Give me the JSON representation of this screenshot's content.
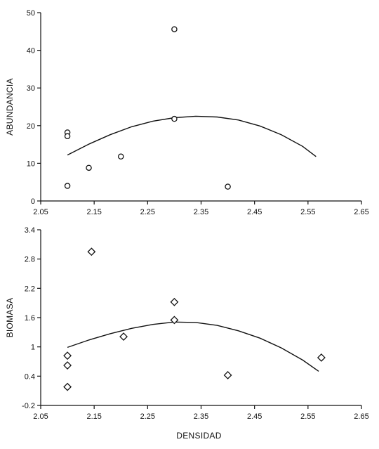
{
  "chart_data": [
    {
      "type": "scatter",
      "title": "",
      "xlabel": "",
      "ylabel": "ABUNDANCIA",
      "xlim": [
        2.05,
        2.65
      ],
      "ylim": [
        0,
        50
      ],
      "xticks": [
        2.05,
        2.15,
        2.25,
        2.35,
        2.45,
        2.55,
        2.65
      ],
      "xtick_labels": [
        "2.05",
        "2.15",
        "2.25",
        "2.35",
        "2.45",
        "2.55",
        "2.65"
      ],
      "yticks": [
        0,
        10,
        20,
        30,
        40,
        50
      ],
      "ytick_labels": [
        "0",
        "10",
        "20",
        "30",
        "40",
        "50"
      ],
      "marker": "circle",
      "grid": false,
      "points": [
        {
          "x": 2.1,
          "y": 18.2
        },
        {
          "x": 2.1,
          "y": 17.2
        },
        {
          "x": 2.1,
          "y": 4.0
        },
        {
          "x": 2.14,
          "y": 8.8
        },
        {
          "x": 2.2,
          "y": 11.8
        },
        {
          "x": 2.3,
          "y": 21.8
        },
        {
          "x": 2.3,
          "y": 45.6
        },
        {
          "x": 2.4,
          "y": 3.8
        }
      ],
      "fit_curve": {
        "type": "quadratic",
        "x": [
          2.1,
          2.14,
          2.18,
          2.22,
          2.26,
          2.3,
          2.34,
          2.38,
          2.42,
          2.46,
          2.5,
          2.54,
          2.565
        ],
        "y": [
          12.2,
          15.1,
          17.6,
          19.7,
          21.2,
          22.1,
          22.5,
          22.3,
          21.5,
          19.9,
          17.6,
          14.5,
          11.8
        ]
      }
    },
    {
      "type": "scatter",
      "title": "",
      "xlabel": "DENSIDAD",
      "ylabel": "BIOMASA",
      "xlim": [
        2.05,
        2.65
      ],
      "ylim": [
        -0.2,
        3.4
      ],
      "xticks": [
        2.05,
        2.15,
        2.25,
        2.35,
        2.45,
        2.55,
        2.65
      ],
      "xtick_labels": [
        "2.05",
        "2.15",
        "2.25",
        "2.35",
        "2.45",
        "2.55",
        "2.65"
      ],
      "yticks": [
        -0.2,
        0.4,
        1.0,
        1.6,
        2.2,
        2.8,
        3.4
      ],
      "ytick_labels": [
        "-0.2",
        "0.4",
        "1",
        "1.6",
        "2.2",
        "2.8",
        "3.4"
      ],
      "marker": "diamond",
      "grid": false,
      "points": [
        {
          "x": 2.1,
          "y": 0.82
        },
        {
          "x": 2.1,
          "y": 0.62
        },
        {
          "x": 2.1,
          "y": 0.18
        },
        {
          "x": 2.145,
          "y": 2.95
        },
        {
          "x": 2.205,
          "y": 1.21
        },
        {
          "x": 2.3,
          "y": 1.92
        },
        {
          "x": 2.3,
          "y": 1.55
        },
        {
          "x": 2.4,
          "y": 0.42
        },
        {
          "x": 2.575,
          "y": 0.78
        }
      ],
      "fit_curve": {
        "type": "quadratic",
        "x": [
          2.1,
          2.14,
          2.18,
          2.22,
          2.26,
          2.3,
          2.34,
          2.38,
          2.42,
          2.46,
          2.5,
          2.54,
          2.57
        ],
        "y": [
          0.99,
          1.14,
          1.27,
          1.38,
          1.46,
          1.51,
          1.5,
          1.44,
          1.33,
          1.18,
          0.98,
          0.73,
          0.5
        ]
      }
    }
  ]
}
